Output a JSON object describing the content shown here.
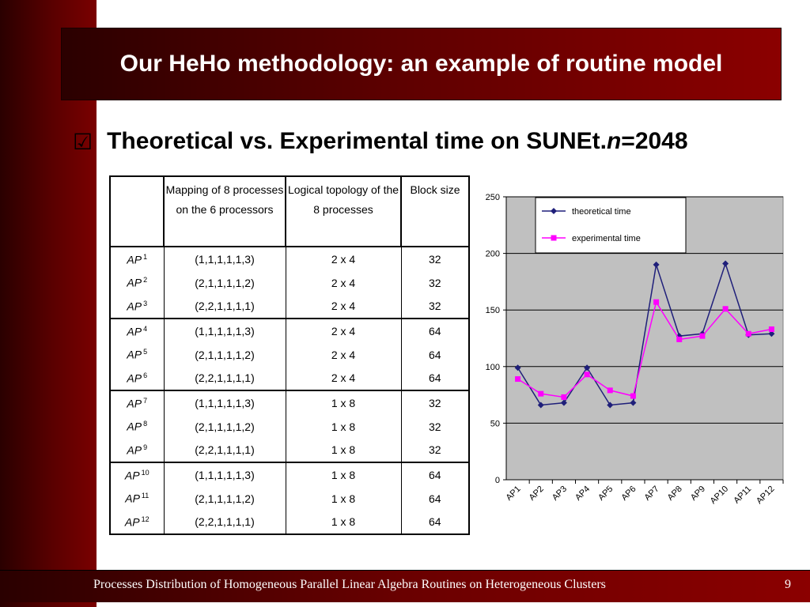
{
  "slide": {
    "title": "Our HeHo methodology: an example of routine model",
    "subtitle_prefix": "Theoretical vs. Experimental time on SUNEt.",
    "subtitle_italic": "n",
    "subtitle_suffix": "=2048",
    "checkbox_icon": "☑",
    "footer": "Processes Distribution of Homogeneous Parallel Linear Algebra Routines on Heterogeneous Clusters",
    "page_number": "9"
  },
  "table": {
    "headers": [
      "",
      "Mapping of 8 processes on the 6 processors",
      "Logical topology of the 8 processes",
      "Block size"
    ],
    "rows": [
      {
        "ap": "AP",
        "sup": "1",
        "mapping": "(1,1,1,1,1,3)",
        "topology": "2 x 4",
        "block": "32"
      },
      {
        "ap": "AP",
        "sup": "2",
        "mapping": "(2,1,1,1,1,2)",
        "topology": "2 x 4",
        "block": "32"
      },
      {
        "ap": "AP",
        "sup": "3",
        "mapping": "(2,2,1,1,1,1)",
        "topology": "2 x 4",
        "block": "32"
      },
      {
        "ap": "AP",
        "sup": "4",
        "mapping": "(1,1,1,1,1,3)",
        "topology": "2 x 4",
        "block": "64"
      },
      {
        "ap": "AP",
        "sup": "5",
        "mapping": "(2,1,1,1,1,2)",
        "topology": "2 x 4",
        "block": "64"
      },
      {
        "ap": "AP",
        "sup": "6",
        "mapping": "(2,2,1,1,1,1)",
        "topology": "2 x 4",
        "block": "64"
      },
      {
        "ap": "AP",
        "sup": "7",
        "mapping": "(1,1,1,1,1,3)",
        "topology": "1 x 8",
        "block": "32"
      },
      {
        "ap": "AP",
        "sup": "8",
        "mapping": "(2,1,1,1,1,2)",
        "topology": "1 x 8",
        "block": "32"
      },
      {
        "ap": "AP",
        "sup": "9",
        "mapping": "(2,2,1,1,1,1)",
        "topology": "1 x 8",
        "block": "32"
      },
      {
        "ap": "AP",
        "sup": "10",
        "mapping": "(1,1,1,1,1,3)",
        "topology": "1 x 8",
        "block": "64"
      },
      {
        "ap": "AP",
        "sup": "11",
        "mapping": "(2,1,1,1,1,2)",
        "topology": "1 x 8",
        "block": "64"
      },
      {
        "ap": "AP",
        "sup": "12",
        "mapping": "(2,2,1,1,1,1)",
        "topology": "1 x 8",
        "block": "64"
      }
    ]
  },
  "chart_data": {
    "type": "line",
    "categories": [
      "AP1",
      "AP2",
      "AP3",
      "AP4",
      "AP5",
      "AP6",
      "AP7",
      "AP8",
      "AP9",
      "AP10",
      "AP11",
      "AP12"
    ],
    "series": [
      {
        "name": "theoretical time",
        "color": "#1f1f7a",
        "marker": "diamond",
        "values": [
          99,
          66,
          68,
          99,
          66,
          68,
          190,
          127,
          129,
          191,
          128,
          129
        ]
      },
      {
        "name": "experimental time",
        "color": "#ff00ff",
        "marker": "square",
        "values": [
          89,
          76,
          73,
          93,
          79,
          74,
          157,
          124,
          127,
          151,
          129,
          133
        ]
      }
    ],
    "ylim": [
      0,
      250
    ],
    "yticks": [
      0,
      50,
      100,
      150,
      200,
      250
    ],
    "grid": true,
    "legend_position": "top-left",
    "plot_background": "#c0c0c0"
  }
}
